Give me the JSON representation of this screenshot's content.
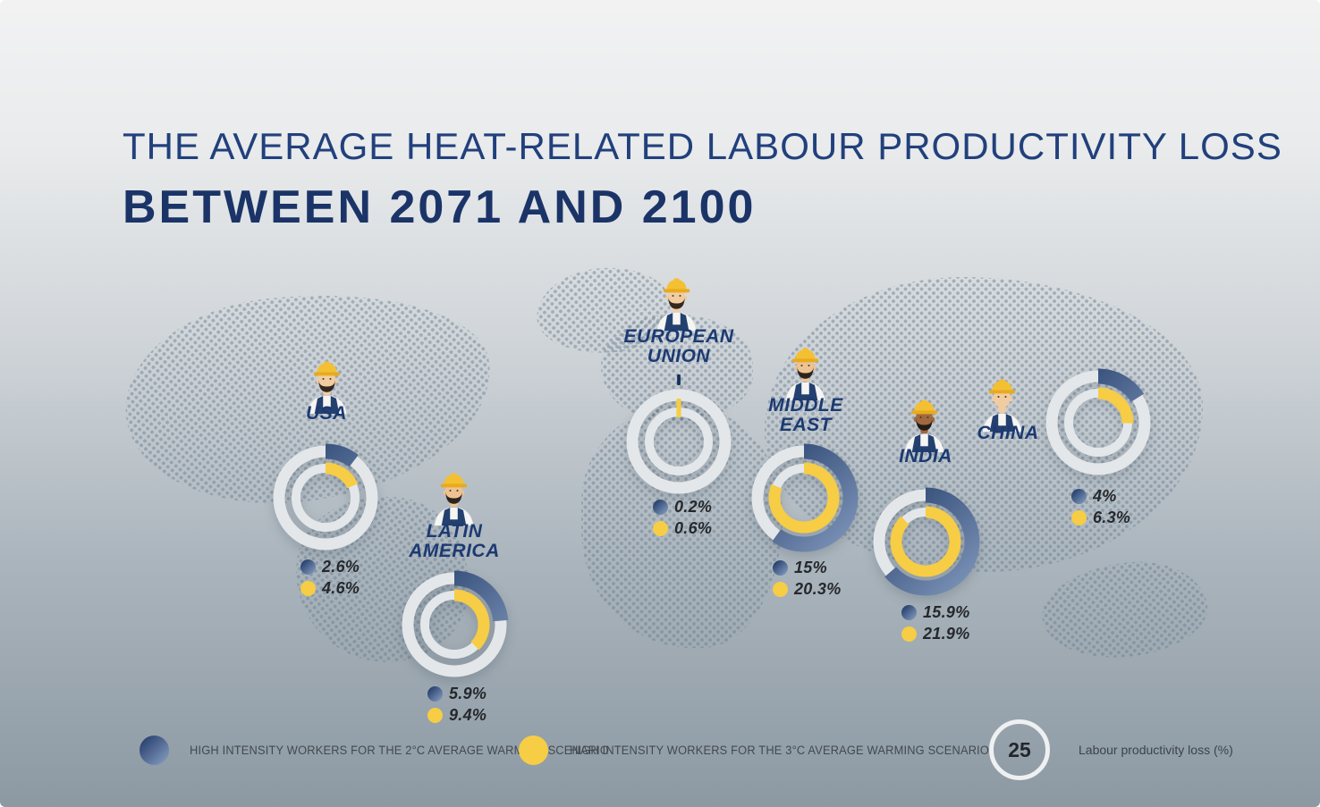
{
  "title": {
    "line1": "THE AVERAGE HEAT-RELATED LABOUR PRODUCTIVITY LOSS",
    "line2": "BETWEEN 2071 AND 2100"
  },
  "scale_max_percent": 25,
  "colors": {
    "navy_title": "#1f3a73",
    "blue_arc_dark": "#16305e",
    "blue_arc_light": "#90a7c9",
    "yellow": "#f6cd44",
    "ring_gray": "#e4e7ea",
    "value_text": "#25282c"
  },
  "regions": [
    {
      "id": "usa",
      "label": "USA",
      "blue_label": "2.6%",
      "yellow_label": "4.6%",
      "blue_value": 2.6,
      "yellow_value": 4.6,
      "worker": {
        "skin": "#f2cca1",
        "beard": "#33281f"
      }
    },
    {
      "id": "latin-america",
      "label": "LATIN\nAMERICA",
      "blue_label": "5.9%",
      "yellow_label": "9.4%",
      "blue_value": 5.9,
      "yellow_value": 9.4,
      "worker": {
        "skin": "#eec393",
        "beard": "#2e241c"
      }
    },
    {
      "id": "european-union",
      "label": "EUROPEAN\nUNION",
      "blue_label": "0.2%",
      "yellow_label": "0.6%",
      "blue_value": 0.2,
      "yellow_value": 0.6,
      "worker": {
        "skin": "#f2cca1",
        "beard": "#33281f"
      }
    },
    {
      "id": "middle-east",
      "label": "MIDDLE\nEAST",
      "blue_label": "15%",
      "yellow_label": "20.3%",
      "blue_value": 15,
      "yellow_value": 20.3,
      "worker": {
        "skin": "#eec393",
        "beard": "#2e241c"
      }
    },
    {
      "id": "india",
      "label": "INDIA",
      "blue_label": "15.9%",
      "yellow_label": "21.9%",
      "blue_value": 15.9,
      "yellow_value": 21.9,
      "worker": {
        "skin": "#a0693f",
        "beard": "#241c15"
      }
    },
    {
      "id": "china",
      "label": "CHINA",
      "blue_label": "4%",
      "yellow_label": "6.3%",
      "blue_value": 4,
      "yellow_value": 6.3,
      "worker": {
        "skin": "#f2cca1",
        "beard": null
      }
    }
  ],
  "legend": {
    "blue_label": "HIGH INTENSITY WORKERS FOR THE 2°C AVERAGE WARMING SCENARIO",
    "yellow_label": "HIGH INTENSITY WORKERS FOR THE 3°C AVERAGE WARMING SCENARIO",
    "scale_value": "25",
    "scale_label": "Labour productivity loss (%)"
  },
  "chart_data": {
    "type": "donut",
    "title": "THE AVERAGE HEAT-RELATED LABOUR PRODUCTIVITY LOSS BETWEEN 2071 AND 2100",
    "full_circle_value": 25,
    "unit": "Labour productivity loss (%)",
    "categories": [
      "USA",
      "LATIN AMERICA",
      "EUROPEAN UNION",
      "MIDDLE EAST",
      "INDIA",
      "CHINA"
    ],
    "series": [
      {
        "name": "HIGH INTENSITY WORKERS FOR THE 2°C AVERAGE WARMING SCENARIO",
        "color": "#16305e",
        "values": [
          2.6,
          5.9,
          0.2,
          15,
          15.9,
          4
        ]
      },
      {
        "name": "HIGH INTENSITY WORKERS FOR THE 3°C AVERAGE WARMING SCENARIO",
        "color": "#f6cd44",
        "values": [
          4.6,
          9.4,
          0.6,
          20.3,
          21.9,
          6.3
        ]
      }
    ],
    "legend_position": "bottom",
    "grid": false
  }
}
